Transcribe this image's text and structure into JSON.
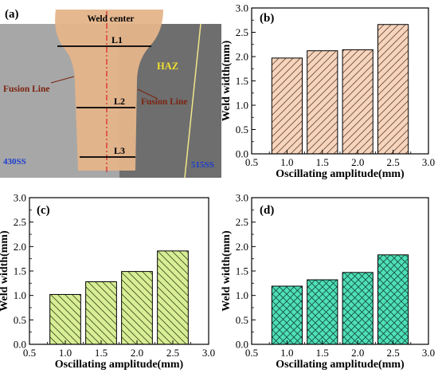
{
  "panel_a": {
    "label": "(a)",
    "weld_center": "Weld center",
    "l1": "L1",
    "l2": "L2",
    "l3": "L3",
    "haz": "HAZ",
    "fusion_line_left": "Fusion Line",
    "fusion_line_right": "Fusion Line",
    "left_material": "430SS",
    "right_material": "515SS",
    "colors": {
      "left_metal": "#a7a7a7",
      "right_metal": "#6e6e6e",
      "weld": "#e4b48a",
      "center_line": "#d92020",
      "haz_text": "#f0e030",
      "material_text": "#1a3ccf",
      "fusion_text": "#7a2410"
    }
  },
  "chart_data": [
    {
      "panel": "(b)",
      "type": "bar",
      "x": [
        1.0,
        1.5,
        2.0,
        2.5
      ],
      "values": [
        1.97,
        2.12,
        2.14,
        2.66
      ],
      "xlabel": "Oscillating amplitude(mm)",
      "ylabel": "Weld width(mm)",
      "xlim": [
        0.5,
        3.0
      ],
      "ylim": [
        0.0,
        3.0
      ],
      "xticks": [
        "0.5",
        "1.0",
        "1.5",
        "2.0",
        "2.5",
        "3.0"
      ],
      "yticks": [
        "0.0",
        "0.5",
        "1.0",
        "1.5",
        "2.0",
        "2.5",
        "3.0"
      ],
      "fill": "#f6d4bd",
      "hatch": "diagonal",
      "grid": false
    },
    {
      "panel": "(c)",
      "type": "bar",
      "x": [
        1.0,
        1.5,
        2.0,
        2.5
      ],
      "values": [
        1.02,
        1.28,
        1.49,
        1.91
      ],
      "xlabel": "Oscillating amplitude(mm)",
      "ylabel": "Weld width(mm)",
      "xlim": [
        0.5,
        3.0
      ],
      "ylim": [
        0.0,
        3.0
      ],
      "xticks": [
        "0.5",
        "1.0",
        "1.5",
        "2.0",
        "2.5",
        "3.0"
      ],
      "yticks": [
        "0.0",
        "0.5",
        "1.0",
        "1.5",
        "2.0",
        "2.5",
        "3.0"
      ],
      "fill": "#d7ee96",
      "hatch": "back-diagonal",
      "grid": false
    },
    {
      "panel": "(d)",
      "type": "bar",
      "x": [
        1.0,
        1.5,
        2.0,
        2.5
      ],
      "values": [
        1.19,
        1.32,
        1.47,
        1.83
      ],
      "xlabel": "Oscillating amplitude(mm)",
      "ylabel": "Weld width(mm)",
      "xlim": [
        0.5,
        3.0
      ],
      "ylim": [
        0.0,
        3.0
      ],
      "xticks": [
        "0.5",
        "1.0",
        "1.5",
        "2.0",
        "2.5",
        "3.0"
      ],
      "yticks": [
        "0.0",
        "0.5",
        "1.0",
        "1.5",
        "2.0",
        "2.5",
        "3.0"
      ],
      "fill": "#4fe0b8",
      "hatch": "cross",
      "grid": false
    }
  ]
}
